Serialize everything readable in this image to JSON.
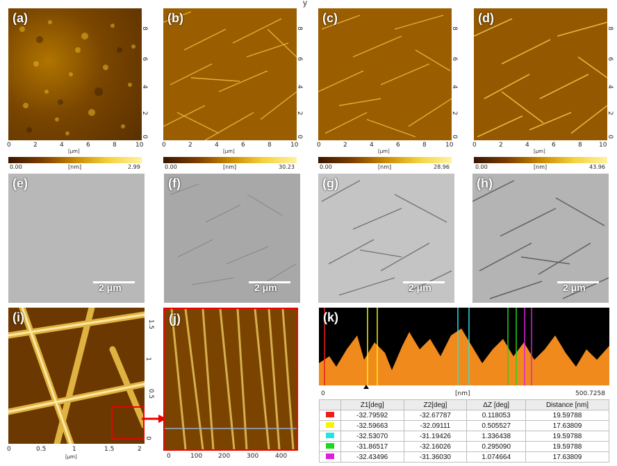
{
  "figure": {
    "top_caption": "y",
    "afm_panels": [
      {
        "id": "a",
        "label": "(a)",
        "cbar_min": "0.00",
        "cbar_max": "2.99",
        "cbar_unit": "[nm]",
        "axis_unit": "[μm]"
      },
      {
        "id": "b",
        "label": "(b)",
        "cbar_min": "0.00",
        "cbar_max": "30.23",
        "cbar_unit": "[nm]",
        "axis_unit": "[μm]"
      },
      {
        "id": "c",
        "label": "(c)",
        "cbar_min": "0.00",
        "cbar_max": "28.96",
        "cbar_unit": "[nm]",
        "axis_unit": "[μm]"
      },
      {
        "id": "d",
        "label": "(d)",
        "cbar_min": "0.00",
        "cbar_max": "43.96",
        "cbar_unit": "[nm]",
        "axis_unit": "[μm]"
      }
    ],
    "afm_x_ticks": [
      "0",
      "2",
      "4",
      "6",
      "8",
      "10"
    ],
    "afm_y_ticks": [
      "0",
      "2",
      "4",
      "6",
      "8"
    ],
    "tem_panels": [
      {
        "id": "e",
        "label": "(e)",
        "scale": "2 μm"
      },
      {
        "id": "f",
        "label": "(f)",
        "scale": "2 μm"
      },
      {
        "id": "g",
        "label": "(g)",
        "scale": "2 μm"
      },
      {
        "id": "h",
        "label": "(h)",
        "scale": "2 μm"
      }
    ],
    "panel_i": {
      "label": "(i)",
      "x_ticks": [
        "0",
        "0.5",
        "1",
        "1.5",
        "2"
      ],
      "y_ticks": [
        "0",
        "0.5",
        "1",
        "1.5"
      ],
      "x_unit": "[μm]"
    },
    "panel_j": {
      "label": "(j)",
      "x_ticks": [
        "0",
        "100",
        "200",
        "300",
        "400"
      ]
    },
    "panel_k": {
      "label": "(k)",
      "axis_left": "0",
      "axis_unit": "[nm]",
      "axis_right": "500.7258",
      "table_headers": [
        "",
        "Z1[deg]",
        "Z2[deg]",
        "ΔZ [deg]",
        "Distance [nm]"
      ],
      "rows": [
        {
          "color": "#ee1c1c",
          "z1": "-32.79592",
          "z2": "-32.67787",
          "dz": "0.118053",
          "dist": "19.59788"
        },
        {
          "color": "#f5f500",
          "z1": "-32.59663",
          "z2": "-32.09111",
          "dz": "0.505527",
          "dist": "17.63809"
        },
        {
          "color": "#22e4e4",
          "z1": "-32.53070",
          "z2": "-31.19426",
          "dz": "1.336438",
          "dist": "19.59788"
        },
        {
          "color": "#1fd51f",
          "z1": "-31.86517",
          "z2": "-32.16026",
          "dz": "0.295090",
          "dist": "19.59788"
        },
        {
          "color": "#e01ce0",
          "z1": "-32.43496",
          "z2": "-31.36030",
          "dz": "1.074664",
          "dist": "17.63809"
        }
      ]
    }
  }
}
